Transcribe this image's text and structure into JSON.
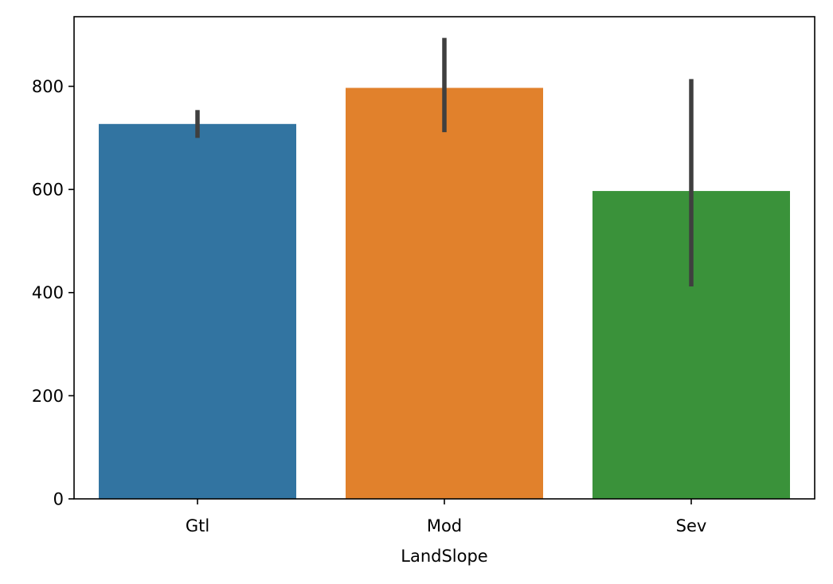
{
  "chart_data": {
    "type": "bar",
    "title": "",
    "xlabel": "LandSlope",
    "ylabel": "",
    "categories": [
      "Gtl",
      "Mod",
      "Sev"
    ],
    "values": [
      727,
      797,
      597
    ],
    "error_bars": [
      {
        "low": 700,
        "high": 754
      },
      {
        "low": 711,
        "high": 894
      },
      {
        "low": 412,
        "high": 814
      }
    ],
    "colors": [
      "#3274a1",
      "#e1812c",
      "#3a923a"
    ],
    "error_bar_color": "#3f3f3f",
    "ylim": [
      0,
      935
    ],
    "yticks": [
      0,
      200,
      400,
      600,
      800
    ],
    "grid": false,
    "legend": "none"
  }
}
